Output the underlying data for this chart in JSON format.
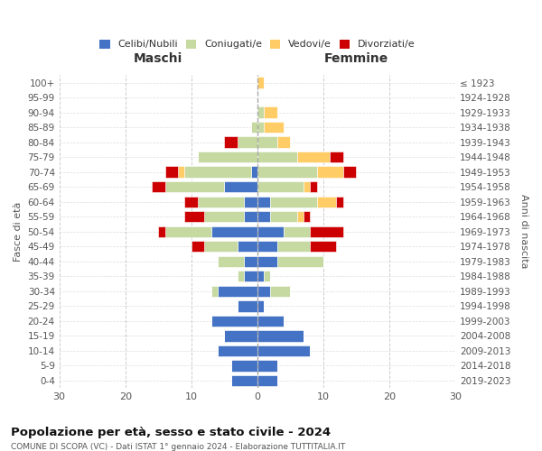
{
  "age_groups": [
    "0-4",
    "5-9",
    "10-14",
    "15-19",
    "20-24",
    "25-29",
    "30-34",
    "35-39",
    "40-44",
    "45-49",
    "50-54",
    "55-59",
    "60-64",
    "65-69",
    "70-74",
    "75-79",
    "80-84",
    "85-89",
    "90-94",
    "95-99",
    "100+"
  ],
  "birth_years": [
    "2019-2023",
    "2014-2018",
    "2009-2013",
    "2004-2008",
    "1999-2003",
    "1994-1998",
    "1989-1993",
    "1984-1988",
    "1979-1983",
    "1974-1978",
    "1969-1973",
    "1964-1968",
    "1959-1963",
    "1954-1958",
    "1949-1953",
    "1944-1948",
    "1939-1943",
    "1934-1938",
    "1929-1933",
    "1924-1928",
    "≤ 1923"
  ],
  "males": {
    "celibi": [
      4,
      4,
      6,
      5,
      7,
      3,
      6,
      2,
      2,
      3,
      7,
      2,
      2,
      5,
      1,
      0,
      0,
      0,
      0,
      0,
      0
    ],
    "coniugati": [
      0,
      0,
      0,
      0,
      0,
      0,
      1,
      1,
      4,
      5,
      7,
      6,
      7,
      9,
      10,
      9,
      3,
      1,
      0,
      0,
      0
    ],
    "vedovi": [
      0,
      0,
      0,
      0,
      0,
      0,
      0,
      0,
      0,
      0,
      0,
      0,
      0,
      0,
      1,
      0,
      0,
      0,
      0,
      0,
      0
    ],
    "divorziati": [
      0,
      0,
      0,
      0,
      0,
      0,
      0,
      0,
      0,
      2,
      1,
      3,
      2,
      2,
      2,
      0,
      2,
      0,
      0,
      0,
      0
    ]
  },
  "females": {
    "nubili": [
      3,
      3,
      8,
      7,
      4,
      1,
      2,
      1,
      3,
      3,
      4,
      2,
      2,
      0,
      0,
      0,
      0,
      0,
      0,
      0,
      0
    ],
    "coniugate": [
      0,
      0,
      0,
      0,
      0,
      0,
      3,
      1,
      7,
      5,
      4,
      4,
      7,
      7,
      9,
      6,
      3,
      1,
      1,
      0,
      0
    ],
    "vedove": [
      0,
      0,
      0,
      0,
      0,
      0,
      0,
      0,
      0,
      0,
      0,
      1,
      3,
      1,
      4,
      5,
      2,
      3,
      2,
      0,
      1
    ],
    "divorziate": [
      0,
      0,
      0,
      0,
      0,
      0,
      0,
      0,
      0,
      4,
      5,
      1,
      1,
      1,
      2,
      2,
      0,
      0,
      0,
      0,
      0
    ]
  },
  "colors": {
    "celibi": "#4472C4",
    "coniugati": "#C5D9A0",
    "vedovi": "#FFCC66",
    "divorziati": "#CC0000"
  },
  "title": "Popolazione per età, sesso e stato civile - 2024",
  "subtitle": "COMUNE DI SCOPA (VC) - Dati ISTAT 1° gennaio 2024 - Elaborazione TUTTITALIA.IT",
  "ylabel_left": "Fasce di età",
  "ylabel_right": "Anni di nascita",
  "xlabel_maschi": "Maschi",
  "xlabel_femmine": "Femmine",
  "xlim": 30,
  "legend_labels": [
    "Celibi/Nubili",
    "Coniugati/e",
    "Vedovi/e",
    "Divorziati/e"
  ],
  "background_color": "#ffffff"
}
